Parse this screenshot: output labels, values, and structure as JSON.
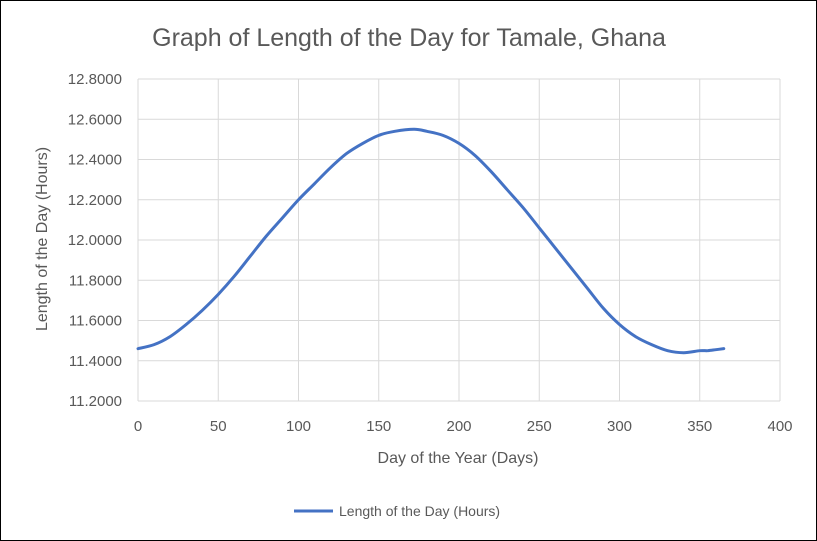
{
  "chart_data": {
    "type": "line",
    "title": "Graph of Length of the Day for Tamale, Ghana",
    "xlabel": "Day of the Year (Days)",
    "ylabel": "Length of the Day (Hours)",
    "xlim": [
      0,
      400
    ],
    "ylim": [
      11.2,
      12.8
    ],
    "x_ticks": [
      "0",
      "50",
      "100",
      "150",
      "200",
      "250",
      "300",
      "350",
      "400"
    ],
    "y_ticks": [
      "11.2000",
      "11.4000",
      "11.6000",
      "11.8000",
      "12.0000",
      "12.2000",
      "12.4000",
      "12.6000",
      "12.8000"
    ],
    "grid": "on",
    "legend_position": "bottom",
    "series_color": "#4472C4",
    "series": [
      {
        "name": "Length of the Day (Hours)",
        "x": [
          0,
          10,
          20,
          30,
          40,
          50,
          60,
          70,
          80,
          90,
          100,
          110,
          120,
          130,
          140,
          150,
          160,
          172,
          180,
          190,
          200,
          210,
          220,
          230,
          240,
          250,
          260,
          270,
          280,
          290,
          300,
          310,
          320,
          330,
          340,
          350,
          355,
          360,
          365
        ],
        "y": [
          11.46,
          11.48,
          11.52,
          11.58,
          11.65,
          11.73,
          11.82,
          11.92,
          12.02,
          12.11,
          12.2,
          12.28,
          12.36,
          12.43,
          12.48,
          12.52,
          12.54,
          12.55,
          12.54,
          12.52,
          12.48,
          12.42,
          12.34,
          12.25,
          12.16,
          12.06,
          11.96,
          11.86,
          11.76,
          11.66,
          11.58,
          11.52,
          11.48,
          11.45,
          11.44,
          11.45,
          11.45,
          11.455,
          11.46
        ]
      }
    ]
  }
}
